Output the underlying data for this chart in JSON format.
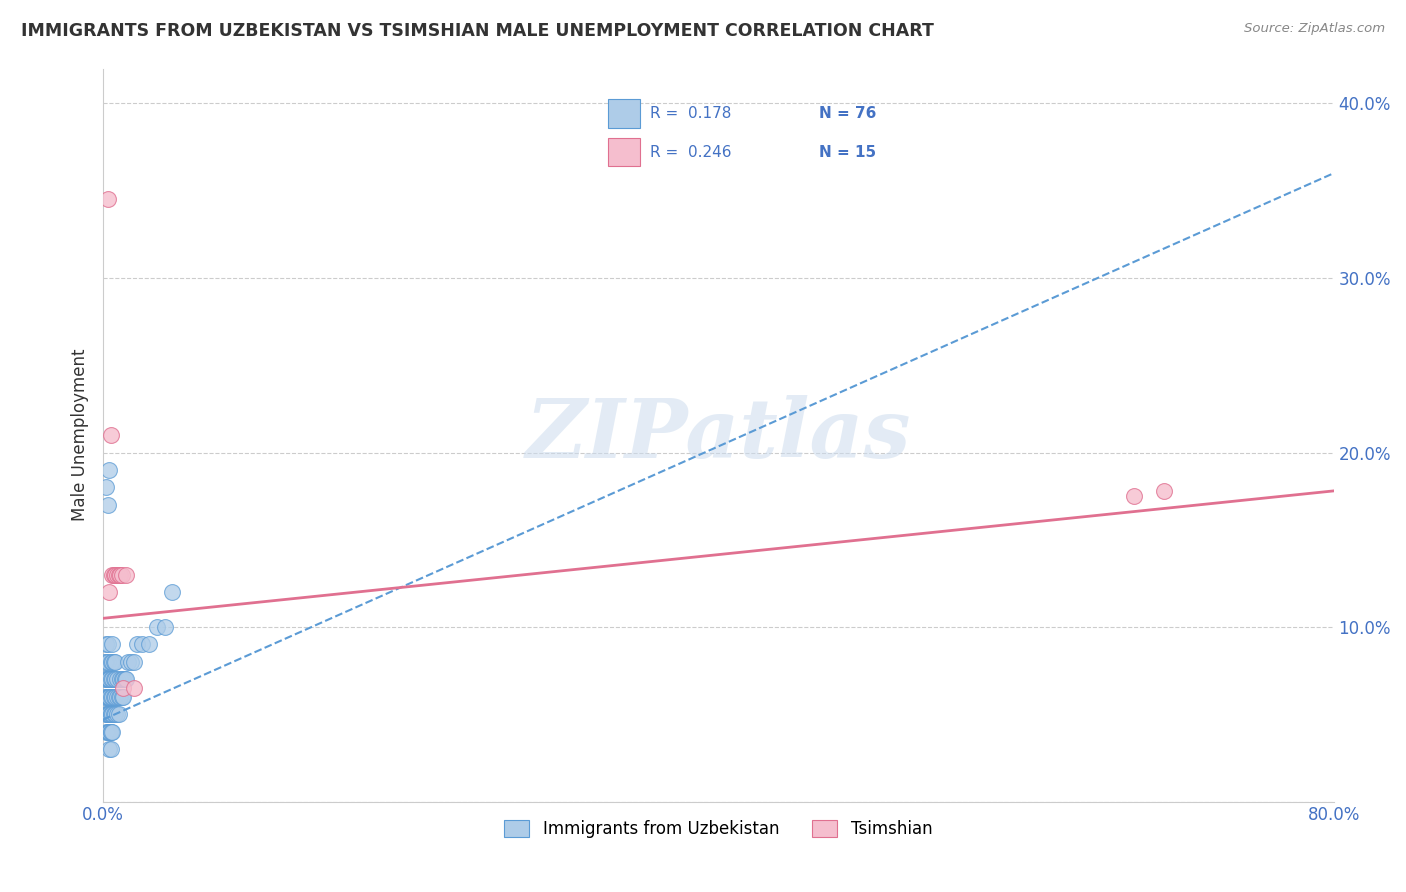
{
  "title": "IMMIGRANTS FROM UZBEKISTAN VS TSIMSHIAN MALE UNEMPLOYMENT CORRELATION CHART",
  "source": "Source: ZipAtlas.com",
  "ylabel": "Male Unemployment",
  "xlim": [
    0.0,
    0.8
  ],
  "ylim": [
    0.0,
    0.42
  ],
  "xticks": [
    0.0,
    0.1,
    0.2,
    0.3,
    0.4,
    0.5,
    0.6,
    0.7,
    0.8
  ],
  "yticks": [
    0.0,
    0.1,
    0.2,
    0.3,
    0.4
  ],
  "legend_r1": "R =  0.178",
  "legend_n1": "N = 76",
  "legend_r2": "R =  0.246",
  "legend_n2": "N = 15",
  "blue_fill": "#aecce8",
  "blue_edge": "#5b9bd5",
  "pink_fill": "#f5bece",
  "pink_edge": "#e07090",
  "blue_trend_color": "#5b9bd5",
  "pink_trend_color": "#e07090",
  "watermark": "ZIPatlas",
  "label_color": "#4472c4",
  "text_color": "#333333",
  "grid_color": "#cccccc",
  "blue_scatter_x": [
    0.001,
    0.001,
    0.001,
    0.002,
    0.002,
    0.002,
    0.002,
    0.002,
    0.002,
    0.002,
    0.003,
    0.003,
    0.003,
    0.003,
    0.003,
    0.003,
    0.003,
    0.003,
    0.003,
    0.003,
    0.004,
    0.004,
    0.004,
    0.004,
    0.004,
    0.004,
    0.004,
    0.004,
    0.004,
    0.005,
    0.005,
    0.005,
    0.005,
    0.005,
    0.005,
    0.005,
    0.005,
    0.006,
    0.006,
    0.006,
    0.006,
    0.006,
    0.006,
    0.007,
    0.007,
    0.007,
    0.007,
    0.008,
    0.008,
    0.008,
    0.008,
    0.009,
    0.009,
    0.009,
    0.01,
    0.01,
    0.011,
    0.011,
    0.012,
    0.012,
    0.013,
    0.013,
    0.014,
    0.015,
    0.016,
    0.018,
    0.02,
    0.022,
    0.025,
    0.03,
    0.035,
    0.04,
    0.045,
    0.002,
    0.003,
    0.004
  ],
  "blue_scatter_y": [
    0.06,
    0.07,
    0.08,
    0.05,
    0.06,
    0.07,
    0.08,
    0.09,
    0.04,
    0.05,
    0.04,
    0.05,
    0.06,
    0.07,
    0.08,
    0.09,
    0.04,
    0.05,
    0.06,
    0.07,
    0.04,
    0.05,
    0.06,
    0.07,
    0.03,
    0.04,
    0.05,
    0.06,
    0.07,
    0.04,
    0.05,
    0.06,
    0.07,
    0.08,
    0.03,
    0.04,
    0.05,
    0.04,
    0.05,
    0.06,
    0.07,
    0.08,
    0.09,
    0.05,
    0.06,
    0.07,
    0.08,
    0.05,
    0.06,
    0.07,
    0.08,
    0.05,
    0.06,
    0.07,
    0.05,
    0.06,
    0.06,
    0.07,
    0.06,
    0.07,
    0.06,
    0.07,
    0.07,
    0.07,
    0.08,
    0.08,
    0.08,
    0.09,
    0.09,
    0.09,
    0.1,
    0.1,
    0.12,
    0.18,
    0.17,
    0.19
  ],
  "pink_scatter_x": [
    0.003,
    0.004,
    0.005,
    0.006,
    0.007,
    0.008,
    0.009,
    0.01,
    0.011,
    0.012,
    0.013,
    0.015,
    0.02,
    0.67,
    0.69
  ],
  "pink_scatter_y": [
    0.345,
    0.12,
    0.21,
    0.13,
    0.13,
    0.13,
    0.13,
    0.13,
    0.13,
    0.13,
    0.065,
    0.13,
    0.065,
    0.175,
    0.178
  ],
  "blue_trend_x": [
    0.0,
    0.8
  ],
  "blue_trend_y": [
    0.047,
    0.36
  ],
  "pink_trend_x": [
    0.0,
    0.8
  ],
  "pink_trend_y": [
    0.105,
    0.178
  ]
}
